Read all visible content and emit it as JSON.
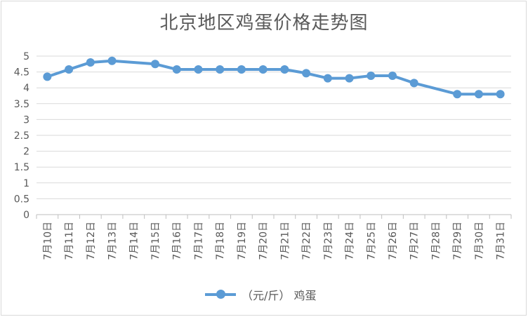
{
  "chart_data": {
    "type": "line",
    "title": "北京地区鸡蛋价格走势图",
    "xlabel": "",
    "ylabel": "",
    "ylim": [
      0,
      5
    ],
    "yticks": [
      "0",
      "0.5",
      "1",
      "1.5",
      "2",
      "2.5",
      "3",
      "3.5",
      "4",
      "4.5",
      "5"
    ],
    "categories": [
      "7月10日",
      "7月11日",
      "7月12日",
      "7月13日",
      "7月14日",
      "7月15日",
      "7月16日",
      "7月17日",
      "7月18日",
      "7月19日",
      "7月20日",
      "7月21日",
      "7月22日",
      "7月23日",
      "7月24日",
      "7月25日",
      "7月26日",
      "7月27日",
      "7月28日",
      "7月29日",
      "7月30日",
      "7月31日"
    ],
    "series": [
      {
        "name": "（元/斤） 鸡蛋",
        "color": "#5b9bd5",
        "values": [
          4.35,
          4.58,
          4.8,
          4.85,
          null,
          4.75,
          4.58,
          4.58,
          4.58,
          4.58,
          4.58,
          4.58,
          4.46,
          4.3,
          4.3,
          4.38,
          4.38,
          4.15,
          null,
          3.8,
          3.8,
          3.8
        ]
      }
    ],
    "grid": true,
    "legend": "bottom"
  }
}
